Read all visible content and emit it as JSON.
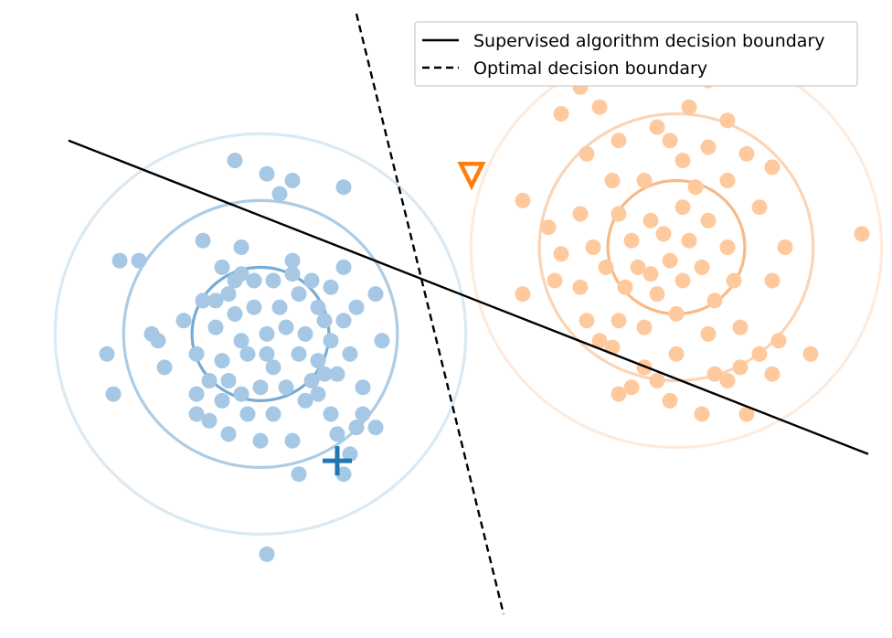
{
  "chart_data": {
    "type": "scatter",
    "axes_visible": false,
    "xlim": [
      -5.5,
      7.5
    ],
    "ylim": [
      -4.5,
      4.5
    ],
    "legend": {
      "placement": "top-right",
      "entries": [
        {
          "label": "Supervised algorithm decision boundary",
          "style": "solid",
          "color": "#000000"
        },
        {
          "label": "Optimal decision boundary",
          "style": "dashed",
          "color": "#000000"
        }
      ]
    },
    "boundaries": [
      {
        "name": "Supervised algorithm decision boundary",
        "style": "solid",
        "color": "#000000",
        "points": [
          [
            -5.0,
            2.6
          ],
          [
            7.5,
            -2.1
          ]
        ]
      },
      {
        "name": "Optimal decision boundary",
        "style": "dashed",
        "color": "#000000",
        "points": [
          [
            -0.5,
            4.5
          ],
          [
            1.8,
            -4.5
          ]
        ]
      }
    ],
    "clusters": [
      {
        "color": "#a6c8e4",
        "ring_color": "#4a8fc4",
        "center": [
          -2.0,
          -0.3
        ],
        "rings": [
          {
            "radius": 1.0,
            "opacity": 0.75
          },
          {
            "radius": 2.0,
            "opacity": 0.45
          },
          {
            "radius": 3.0,
            "opacity": 0.2
          }
        ],
        "points": [
          [
            -2.4,
            2.3
          ],
          [
            -1.9,
            2.1
          ],
          [
            -1.5,
            2.0
          ],
          [
            -0.7,
            1.9
          ],
          [
            -1.7,
            1.8
          ],
          [
            -2.9,
            1.1
          ],
          [
            -2.3,
            1.0
          ],
          [
            -4.2,
            0.8
          ],
          [
            -3.9,
            0.8
          ],
          [
            -2.6,
            0.7
          ],
          [
            -2.3,
            0.6
          ],
          [
            -2.1,
            0.5
          ],
          [
            -1.8,
            0.5
          ],
          [
            -1.5,
            0.6
          ],
          [
            -1.2,
            0.5
          ],
          [
            -0.7,
            0.7
          ],
          [
            -0.9,
            0.4
          ],
          [
            -0.5,
            0.1
          ],
          [
            -0.7,
            -0.1
          ],
          [
            -0.2,
            0.3
          ],
          [
            -2.5,
            0.3
          ],
          [
            -2.9,
            0.2
          ],
          [
            -2.4,
            0.0
          ],
          [
            -2.1,
            0.1
          ],
          [
            -1.7,
            0.1
          ],
          [
            -1.4,
            0.3
          ],
          [
            -1.1,
            0.1
          ],
          [
            -3.2,
            -0.1
          ],
          [
            -2.7,
            -0.2
          ],
          [
            -2.3,
            -0.4
          ],
          [
            -1.9,
            -0.3
          ],
          [
            -1.6,
            -0.2
          ],
          [
            -1.3,
            -0.3
          ],
          [
            -1.0,
            -0.1
          ],
          [
            -0.9,
            -0.4
          ],
          [
            -0.6,
            -0.6
          ],
          [
            -0.1,
            -0.4
          ],
          [
            -3.7,
            -0.3
          ],
          [
            -4.4,
            -0.6
          ],
          [
            -3.6,
            -0.4
          ],
          [
            -3.0,
            -0.6
          ],
          [
            -2.6,
            -0.7
          ],
          [
            -2.2,
            -0.6
          ],
          [
            -1.8,
            -0.8
          ],
          [
            -1.4,
            -0.6
          ],
          [
            -1.1,
            -0.7
          ],
          [
            -0.8,
            -0.9
          ],
          [
            -2.8,
            -1.0
          ],
          [
            -2.5,
            -1.0
          ],
          [
            -2.0,
            -1.1
          ],
          [
            -1.6,
            -1.1
          ],
          [
            -1.2,
            -1.0
          ],
          [
            -0.4,
            -1.1
          ],
          [
            -4.3,
            -1.2
          ],
          [
            -3.0,
            -1.2
          ],
          [
            -2.6,
            -1.3
          ],
          [
            -2.2,
            -1.5
          ],
          [
            -1.8,
            -1.5
          ],
          [
            -1.3,
            -1.3
          ],
          [
            -0.9,
            -1.5
          ],
          [
            -0.5,
            -1.7
          ],
          [
            -0.2,
            -1.7
          ],
          [
            -2.8,
            -1.6
          ],
          [
            -2.0,
            -1.9
          ],
          [
            -1.5,
            -1.9
          ],
          [
            -0.8,
            -1.8
          ],
          [
            -0.4,
            -1.5
          ],
          [
            -3.0,
            -1.5
          ],
          [
            -2.3,
            -1.2
          ],
          [
            -1.1,
            -1.2
          ],
          [
            -1.4,
            -2.4
          ],
          [
            -0.7,
            -2.4
          ],
          [
            -2.5,
            -1.8
          ],
          [
            -1.9,
            -0.6
          ],
          [
            -2.7,
            0.2
          ],
          [
            -0.6,
            -2.1
          ],
          [
            -1.9,
            -3.6
          ],
          [
            -3.5,
            -0.8
          ],
          [
            -2.4,
            0.5
          ],
          [
            -1.5,
            0.8
          ],
          [
            -1.0,
            -0.9
          ]
        ]
      },
      {
        "color": "#ffc99e",
        "ring_color": "#f5a25c",
        "center": [
          4.5,
          1.0
        ],
        "rings": [
          {
            "radius": 1.0,
            "opacity": 0.75
          },
          {
            "radius": 2.0,
            "opacity": 0.45
          },
          {
            "radius": 3.0,
            "opacity": 0.2
          }
        ],
        "points": [
          [
            3.2,
            4.0
          ],
          [
            5.0,
            3.5
          ],
          [
            2.7,
            3.0
          ],
          [
            3.3,
            3.1
          ],
          [
            4.2,
            2.8
          ],
          [
            5.3,
            2.9
          ],
          [
            3.1,
            2.4
          ],
          [
            3.6,
            2.6
          ],
          [
            4.4,
            2.6
          ],
          [
            5.0,
            2.5
          ],
          [
            5.6,
            2.4
          ],
          [
            4.6,
            2.3
          ],
          [
            5.3,
            2.0
          ],
          [
            6.0,
            2.2
          ],
          [
            3.5,
            2.0
          ],
          [
            4.0,
            2.0
          ],
          [
            4.8,
            1.9
          ],
          [
            5.8,
            1.6
          ],
          [
            2.1,
            1.7
          ],
          [
            2.5,
            1.3
          ],
          [
            3.0,
            1.5
          ],
          [
            3.6,
            1.5
          ],
          [
            4.1,
            1.4
          ],
          [
            4.6,
            1.6
          ],
          [
            5.0,
            1.4
          ],
          [
            4.3,
            1.2
          ],
          [
            3.8,
            1.1
          ],
          [
            3.2,
            1.0
          ],
          [
            2.7,
            0.9
          ],
          [
            4.7,
            1.1
          ],
          [
            5.3,
            1.0
          ],
          [
            6.2,
            1.0
          ],
          [
            7.4,
            1.2
          ],
          [
            3.4,
            0.7
          ],
          [
            3.9,
            0.7
          ],
          [
            4.4,
            0.8
          ],
          [
            4.9,
            0.7
          ],
          [
            5.4,
            0.5
          ],
          [
            2.6,
            0.5
          ],
          [
            3.0,
            0.4
          ],
          [
            3.7,
            0.4
          ],
          [
            4.2,
            0.3
          ],
          [
            4.6,
            0.5
          ],
          [
            5.1,
            0.2
          ],
          [
            6.0,
            0.5
          ],
          [
            2.1,
            0.3
          ],
          [
            3.1,
            -0.1
          ],
          [
            3.6,
            -0.1
          ],
          [
            4.0,
            -0.2
          ],
          [
            4.5,
            0.0
          ],
          [
            5.0,
            -0.3
          ],
          [
            5.5,
            -0.2
          ],
          [
            6.1,
            -0.4
          ],
          [
            6.6,
            -0.6
          ],
          [
            3.5,
            -0.5
          ],
          [
            4.0,
            -0.8
          ],
          [
            4.5,
            -0.6
          ],
          [
            5.1,
            -0.9
          ],
          [
            5.5,
            -0.8
          ],
          [
            6.0,
            -0.9
          ],
          [
            3.8,
            -1.1
          ],
          [
            4.2,
            -1.0
          ],
          [
            4.9,
            -1.5
          ],
          [
            5.6,
            -1.5
          ],
          [
            3.6,
            -1.2
          ],
          [
            4.4,
            -1.3
          ],
          [
            5.3,
            -1.0
          ],
          [
            3.3,
            -0.4
          ],
          [
            3.0,
            3.4
          ],
          [
            4.7,
            3.1
          ],
          [
            4.1,
            0.6
          ],
          [
            5.8,
            -0.6
          ]
        ]
      }
    ],
    "markers": [
      {
        "symbol": "plus",
        "x": -0.8,
        "y": -2.2,
        "color": "#1f77b4"
      },
      {
        "symbol": "triangle-down",
        "x": 1.3,
        "y": 2.1,
        "color": "#ff7f0e"
      }
    ]
  }
}
